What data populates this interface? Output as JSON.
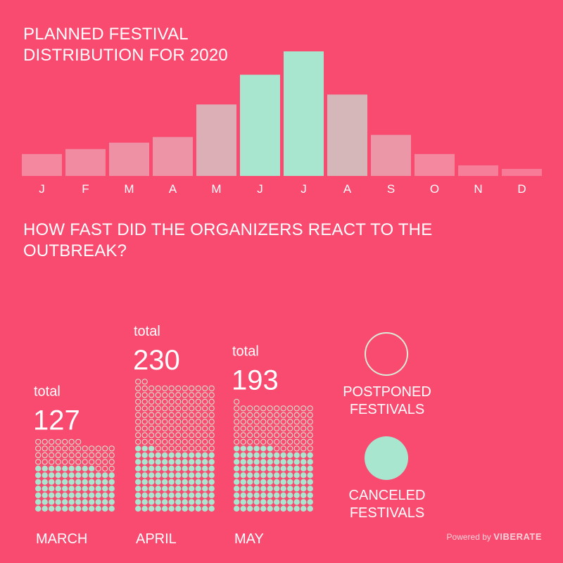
{
  "title": "PLANNED FESTIVAL DISTRIBUTION FOR 2020",
  "subtitle": "HOW FAST DID THE ORGANIZERS REACT TO THE OUTBREAK?",
  "chart_data": [
    {
      "type": "bar",
      "title": "PLANNED FESTIVAL DISTRIBUTION FOR 2020",
      "categories": [
        "J",
        "F",
        "M",
        "A",
        "M",
        "J",
        "J",
        "A",
        "S",
        "O",
        "N",
        "D"
      ],
      "values": [
        31,
        38,
        47,
        55,
        101,
        143,
        176,
        115,
        58,
        31,
        15,
        10
      ],
      "highlight": [
        false,
        false,
        false,
        false,
        false,
        true,
        true,
        false,
        false,
        false,
        false,
        false
      ],
      "colors": {
        "high": "#a8e6cf",
        "low": "#f3f0f0"
      }
    },
    {
      "type": "unit",
      "title": "HOW FAST DID THE ORGANIZERS REACT TO THE OUTBREAK?",
      "categories": [
        "MARCH",
        "APRIL",
        "MAY"
      ],
      "total_label": "total",
      "totals": [
        127,
        230,
        193
      ],
      "series": [
        {
          "name": "POSTPONED FESTIVALS",
          "values": [
            46,
            119,
            79
          ]
        },
        {
          "name": "CANCELED FESTIVALS",
          "values": [
            81,
            111,
            114
          ]
        }
      ],
      "colors": {
        "postponed": "#d8ecd8",
        "canceled": "#a8e6cf"
      }
    }
  ],
  "legend": {
    "postponed_label": "POSTPONED FESTIVALS",
    "canceled_label": "CANCELED FESTIVALS"
  },
  "footer": {
    "prefix": "Powered by",
    "brand": "VIBERATE"
  }
}
